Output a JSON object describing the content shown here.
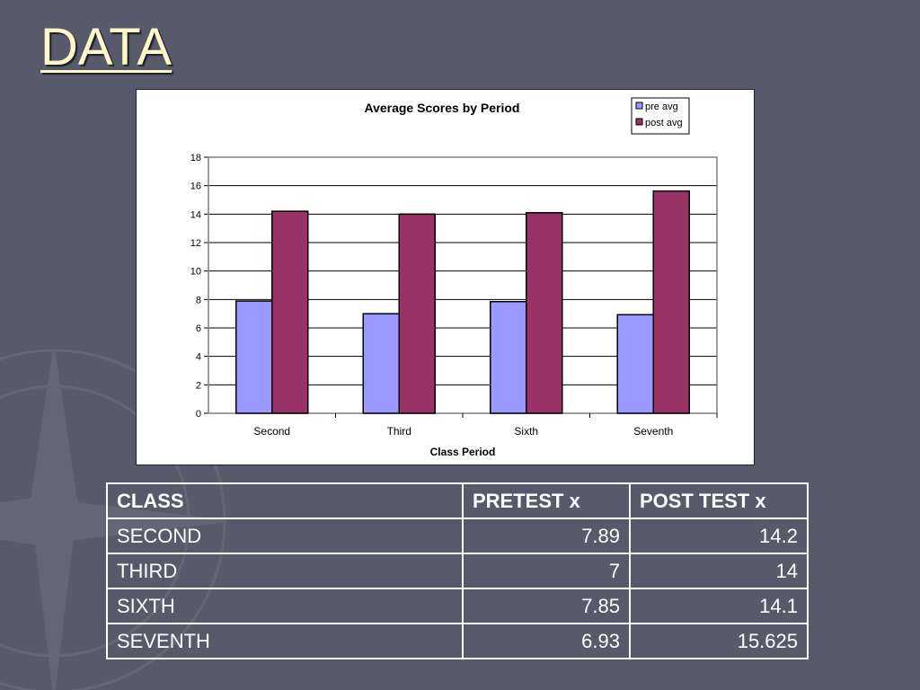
{
  "slide": {
    "title": "DATA"
  },
  "chart_data": {
    "type": "bar",
    "title": "Average Scores by Period",
    "xlabel": "Class Period",
    "ylabel": "",
    "categories": [
      "Second",
      "Third",
      "Sixth",
      "Seventh"
    ],
    "series": [
      {
        "name": "pre avg",
        "values": [
          7.89,
          7,
          7.85,
          6.93
        ],
        "color": "#9999ff"
      },
      {
        "name": "post avg",
        "values": [
          14.2,
          14,
          14.1,
          15.625
        ],
        "color": "#993366"
      }
    ],
    "ylim": [
      0,
      18
    ],
    "yticks": [
      0,
      2,
      4,
      6,
      8,
      10,
      12,
      14,
      16,
      18
    ],
    "grid": true,
    "legend_position": "top-right"
  },
  "table": {
    "headers": [
      "CLASS",
      "PRETEST x",
      "POST TEST x"
    ],
    "rows": [
      [
        "SECOND",
        "7.89",
        "14.2"
      ],
      [
        "THIRD",
        "7",
        "14"
      ],
      [
        "SIXTH",
        "7.85",
        "14.1"
      ],
      [
        "SEVENTH",
        "6.93",
        "15.625"
      ]
    ]
  },
  "colors": {
    "background": "#585a6c",
    "title": "#fff8c8",
    "table_text": "#ffffff"
  }
}
